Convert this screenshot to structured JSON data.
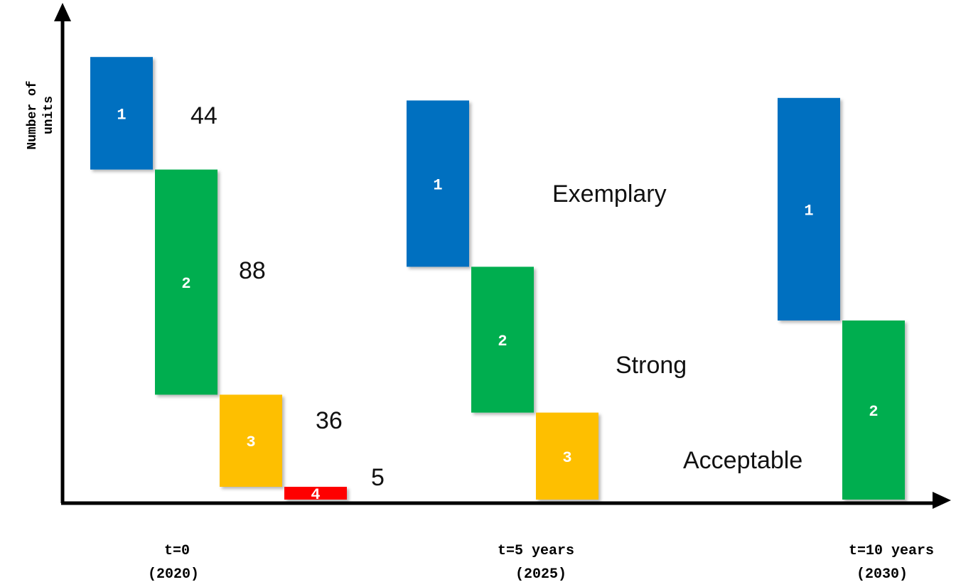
{
  "chart_data": {
    "type": "bar",
    "ylabel": [
      "Number of",
      "units"
    ],
    "groups": [
      {
        "x_label": [
          "t=0",
          "(2020)"
        ],
        "bars": [
          {
            "level": "1",
            "units": 44,
            "color": "#0570C0",
            "value_label": "44"
          },
          {
            "level": "2",
            "units": 88,
            "color": "#00AE4F",
            "value_label": "88"
          },
          {
            "level": "3",
            "units": 36,
            "color": "#FEBF00",
            "value_label": "36"
          },
          {
            "level": "4",
            "units": 5,
            "color": "#FE0000",
            "value_label": "5"
          }
        ]
      },
      {
        "x_label": [
          "t=5 years",
          "(2025)"
        ],
        "bars": [
          {
            "level": "1",
            "units": 65,
            "color": "#0570C0"
          },
          {
            "level": "2",
            "units": 57,
            "color": "#00AE4F"
          },
          {
            "level": "3",
            "units": 34,
            "color": "#FEBF00"
          }
        ]
      },
      {
        "x_label": [
          "t=10 years",
          "(2030)"
        ],
        "bars": [
          {
            "level": "1",
            "units": 87,
            "color": "#0570C0"
          },
          {
            "level": "2",
            "units": 70,
            "color": "#00AE4F"
          }
        ]
      }
    ],
    "annotations": [
      "Exemplary",
      "Strong",
      "Acceptable"
    ],
    "axis_color": "#000000"
  }
}
